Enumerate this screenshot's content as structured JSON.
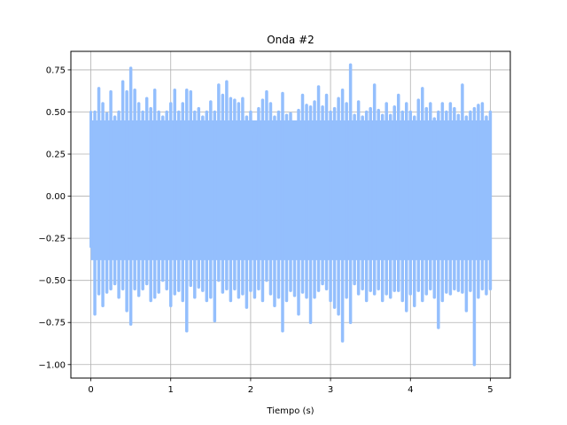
{
  "chart_data": {
    "type": "line",
    "title": "Onda #2",
    "xlabel": "Tiempo (s)",
    "ylabel": "",
    "xlim": [
      -0.25,
      5.25
    ],
    "ylim": [
      -1.08,
      0.86
    ],
    "xticks": [
      0,
      1,
      2,
      3,
      4,
      5
    ],
    "xtick_labels": [
      "0",
      "1",
      "2",
      "3",
      "4",
      "5"
    ],
    "yticks": [
      -1.0,
      -0.75,
      -0.5,
      -0.25,
      0.0,
      0.25,
      0.5,
      0.75
    ],
    "ytick_labels": [
      "−1.00",
      "−0.75",
      "−0.50",
      "−0.25",
      "0.00",
      "0.25",
      "0.50",
      "0.75"
    ],
    "grid": true,
    "series": [
      {
        "color": "#94bffd",
        "x_range": [
          0,
          5
        ],
        "min_value": -1.0,
        "max_value": 0.78,
        "x": [
          0.05,
          0.1,
          0.15,
          0.2,
          0.25,
          0.3,
          0.35,
          0.4,
          0.45,
          0.5,
          0.55,
          0.6,
          0.65,
          0.7,
          0.75,
          0.8,
          0.85,
          0.9,
          0.95,
          1.0,
          1.05,
          1.1,
          1.15,
          1.2,
          1.25,
          1.3,
          1.35,
          1.4,
          1.45,
          1.5,
          1.55,
          1.6,
          1.65,
          1.7,
          1.75,
          1.8,
          1.85,
          1.9,
          1.95,
          2.0,
          2.05,
          2.1,
          2.15,
          2.2,
          2.25,
          2.3,
          2.35,
          2.4,
          2.45,
          2.5,
          2.55,
          2.6,
          2.65,
          2.7,
          2.75,
          2.8,
          2.85,
          2.9,
          2.95,
          3.0,
          3.05,
          3.1,
          3.15,
          3.2,
          3.25,
          3.3,
          3.35,
          3.4,
          3.45,
          3.5,
          3.55,
          3.6,
          3.65,
          3.7,
          3.75,
          3.8,
          3.85,
          3.9,
          3.95,
          4.0,
          4.05,
          4.1,
          4.15,
          4.2,
          4.25,
          4.3,
          4.35,
          4.4,
          4.45,
          4.5,
          4.55,
          4.6,
          4.65,
          4.7,
          4.75,
          4.8,
          4.85,
          4.9,
          4.95,
          5.0
        ],
        "upper": [
          0.5,
          0.64,
          0.55,
          0.49,
          0.62,
          0.47,
          0.5,
          0.68,
          0.62,
          0.76,
          0.63,
          0.55,
          0.5,
          0.58,
          0.52,
          0.63,
          0.5,
          0.47,
          0.5,
          0.55,
          0.63,
          0.5,
          0.55,
          0.63,
          0.62,
          0.5,
          0.52,
          0.47,
          0.5,
          0.56,
          0.5,
          0.66,
          0.6,
          0.68,
          0.58,
          0.57,
          0.55,
          0.58,
          0.47,
          0.5,
          0.37,
          0.52,
          0.57,
          0.62,
          0.55,
          0.47,
          0.5,
          0.61,
          0.48,
          0.49,
          0.42,
          0.51,
          0.6,
          0.54,
          0.53,
          0.56,
          0.65,
          0.53,
          0.6,
          0.5,
          0.52,
          0.58,
          0.63,
          0.55,
          0.78,
          0.48,
          0.56,
          0.47,
          0.5,
          0.52,
          0.66,
          0.51,
          0.48,
          0.55,
          0.48,
          0.53,
          0.6,
          0.5,
          0.55,
          0.5,
          0.47,
          0.57,
          0.64,
          0.52,
          0.55,
          0.46,
          0.5,
          0.55,
          0.5,
          0.55,
          0.52,
          0.48,
          0.66,
          0.47,
          0.5,
          0.52,
          0.54,
          0.55,
          0.47,
          0.5
        ],
        "lower": [
          -0.7,
          -0.58,
          -0.65,
          -0.57,
          -0.55,
          -0.52,
          -0.6,
          -0.55,
          -0.68,
          -0.76,
          -0.55,
          -0.59,
          -0.55,
          -0.52,
          -0.62,
          -0.6,
          -0.57,
          -0.5,
          -0.55,
          -0.65,
          -0.58,
          -0.56,
          -0.62,
          -0.8,
          -0.53,
          -0.6,
          -0.54,
          -0.56,
          -0.62,
          -0.6,
          -0.74,
          -0.5,
          -0.57,
          -0.55,
          -0.62,
          -0.55,
          -0.6,
          -0.58,
          -0.66,
          -0.56,
          -0.6,
          -0.55,
          -0.62,
          -0.5,
          -0.58,
          -0.65,
          -0.6,
          -0.8,
          -0.62,
          -0.56,
          -0.59,
          -0.7,
          -0.57,
          -0.6,
          -0.75,
          -0.6,
          -0.56,
          -0.52,
          -0.55,
          -0.62,
          -0.66,
          -0.7,
          -0.86,
          -0.6,
          -0.75,
          -0.52,
          -0.58,
          -0.55,
          -0.62,
          -0.56,
          -0.58,
          -0.55,
          -0.62,
          -0.58,
          -0.6,
          -0.56,
          -0.56,
          -0.62,
          -0.68,
          -0.58,
          -0.65,
          -0.56,
          -0.62,
          -0.58,
          -0.55,
          -0.6,
          -0.78,
          -0.62,
          -0.57,
          -0.58,
          -0.55,
          -0.56,
          -0.57,
          -0.68,
          -0.56,
          -1.0,
          -0.6,
          -0.55,
          -0.58,
          -0.55
        ]
      }
    ]
  }
}
